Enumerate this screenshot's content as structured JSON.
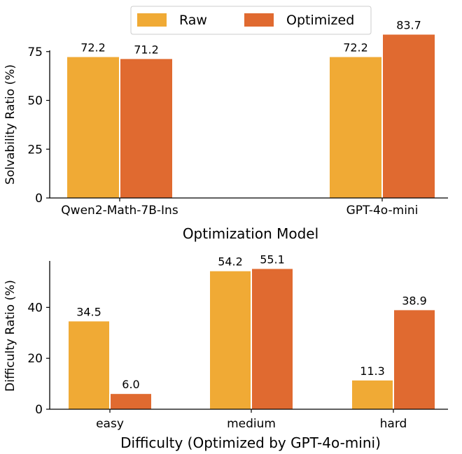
{
  "colors": {
    "raw": "#F0AA35",
    "optimized": "#E06A30"
  },
  "legend": {
    "items": [
      {
        "key": "raw",
        "label": "Raw"
      },
      {
        "key": "optimized",
        "label": "Optimized"
      }
    ]
  },
  "chart_data": [
    {
      "type": "bar",
      "categories": [
        "Qwen2-Math-7B-Ins",
        "GPT-4o-mini"
      ],
      "series": [
        {
          "name": "Raw",
          "values": [
            72.2,
            72.2
          ]
        },
        {
          "name": "Optimized",
          "values": [
            71.2,
            83.7
          ]
        }
      ],
      "xlabel": "Optimization Model",
      "ylabel": "Solvability Ratio (%)",
      "ylim": [
        0,
        90
      ],
      "yticks": [
        0,
        25,
        50,
        75
      ],
      "grid": false,
      "legend_position": "top-center"
    },
    {
      "type": "bar",
      "categories": [
        "easy",
        "medium",
        "hard"
      ],
      "series": [
        {
          "name": "Raw",
          "values": [
            34.5,
            54.2,
            11.3
          ]
        },
        {
          "name": "Optimized",
          "values": [
            6.0,
            55.1,
            38.9
          ]
        }
      ],
      "xlabel": "Difficulty (Optimized by GPT-4o-mini)",
      "ylabel": "Difficulty Ratio (%)",
      "ylim": [
        0,
        58
      ],
      "yticks": [
        0,
        20,
        40
      ],
      "grid": false
    }
  ]
}
